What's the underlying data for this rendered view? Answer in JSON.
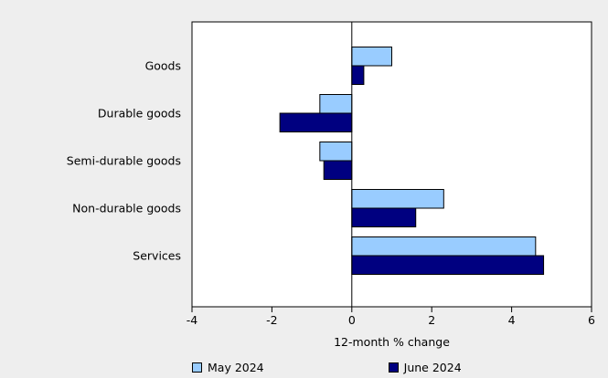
{
  "chart_data": {
    "type": "bar",
    "orientation": "horizontal",
    "title": "",
    "xlabel": "12-month % change",
    "ylabel": "",
    "xlim": [
      -4,
      6
    ],
    "xticks": [
      -4,
      -2,
      0,
      2,
      4,
      6
    ],
    "xtick_labels": [
      "-4",
      "-2",
      "0",
      "2",
      "4",
      "6"
    ],
    "grid": false,
    "legend_position": "bottom",
    "categories": [
      "Goods",
      "Durable goods",
      "Semi-durable goods",
      "Non-durable goods",
      "Services"
    ],
    "series": [
      {
        "name": "May 2024",
        "color": "#99ccff",
        "values": [
          1.0,
          -0.8,
          -0.8,
          2.3,
          4.6
        ]
      },
      {
        "name": "June 2024",
        "color": "#000080",
        "values": [
          0.3,
          -1.8,
          -0.7,
          1.6,
          4.8
        ]
      }
    ]
  }
}
